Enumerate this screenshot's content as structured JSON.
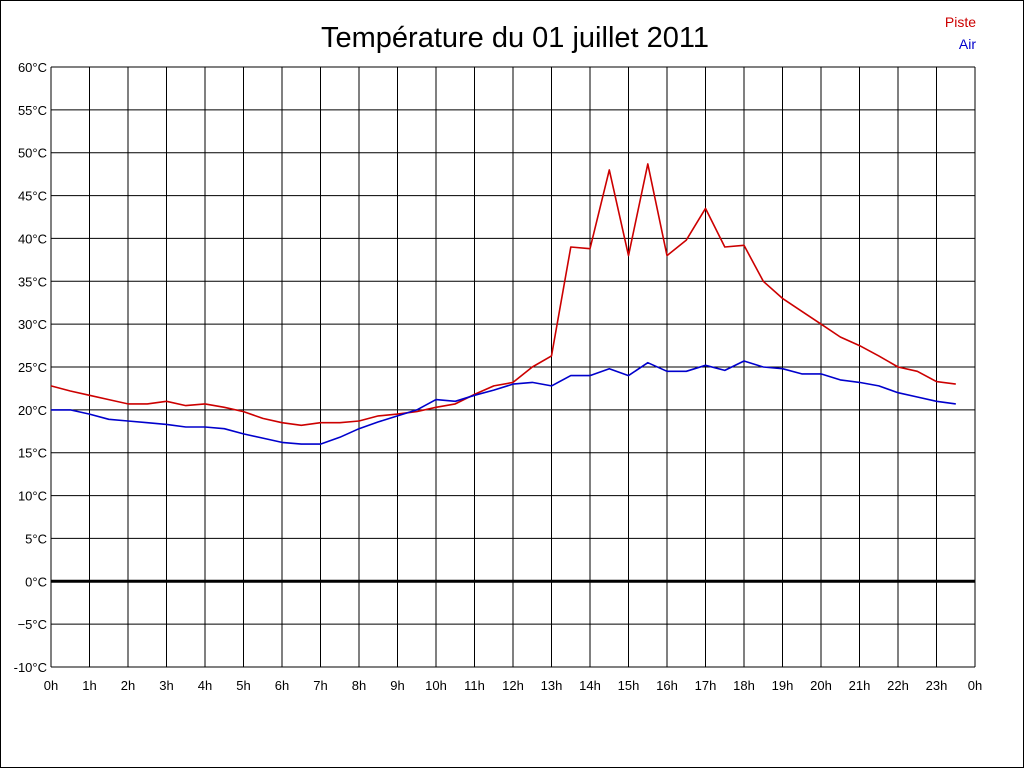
{
  "chart_data": {
    "type": "line",
    "title": "Température du 01 juillet 2011",
    "xlabel": "",
    "ylabel": "",
    "x_ticks": [
      "0h",
      "1h",
      "2h",
      "3h",
      "4h",
      "5h",
      "6h",
      "7h",
      "8h",
      "9h",
      "10h",
      "11h",
      "12h",
      "13h",
      "14h",
      "15h",
      "16h",
      "17h",
      "18h",
      "19h",
      "20h",
      "21h",
      "22h",
      "23h",
      "0h"
    ],
    "xlim": [
      0,
      24
    ],
    "ylim": [
      -10,
      60
    ],
    "y_ticks": [
      {
        "value": -10,
        "label": "-10°C"
      },
      {
        "value": -5,
        "label": "−5°C"
      },
      {
        "value": 0,
        "label": "0°C"
      },
      {
        "value": 5,
        "label": "5°C"
      },
      {
        "value": 10,
        "label": "10°C"
      },
      {
        "value": 15,
        "label": "15°C"
      },
      {
        "value": 20,
        "label": "20°C"
      },
      {
        "value": 25,
        "label": "25°C"
      },
      {
        "value": 30,
        "label": "30°C"
      },
      {
        "value": 35,
        "label": "35°C"
      },
      {
        "value": 40,
        "label": "40°C"
      },
      {
        "value": 45,
        "label": "45°C"
      },
      {
        "value": 50,
        "label": "50°C"
      },
      {
        "value": 55,
        "label": "55°C"
      },
      {
        "value": 60,
        "label": "60°C"
      }
    ],
    "grid": true,
    "legend_position": "top-right",
    "zero_line_color": "#000000",
    "series": [
      {
        "name": "Piste",
        "color": "#cc0000",
        "x": [
          0,
          0.5,
          1,
          1.5,
          2,
          2.5,
          3,
          3.5,
          4,
          4.5,
          5,
          5.5,
          6,
          6.5,
          7,
          7.5,
          8,
          8.5,
          9,
          9.5,
          10,
          10.5,
          11,
          11.5,
          12,
          12.5,
          13,
          13.5,
          14,
          14.5,
          15,
          15.5,
          16,
          16.5,
          17,
          17.5,
          18,
          18.5,
          19,
          19.5,
          20,
          20.5,
          21,
          21.5,
          22,
          22.5,
          23,
          23.5
        ],
        "y": [
          22.8,
          22.2,
          21.7,
          21.2,
          20.7,
          20.7,
          21.0,
          20.5,
          20.7,
          20.3,
          19.8,
          19.0,
          18.5,
          18.2,
          18.5,
          18.5,
          18.7,
          19.3,
          19.5,
          19.8,
          20.3,
          20.7,
          21.8,
          22.8,
          23.2,
          25.0,
          26.3,
          39.0,
          38.8,
          48.0,
          38.0,
          48.7,
          38.0,
          39.8,
          43.5,
          39.0,
          39.2,
          35.0,
          33.0,
          31.5,
          30.0,
          28.5,
          27.5,
          26.3,
          25.0,
          24.5,
          23.3,
          23.0
        ]
      },
      {
        "name": "Air",
        "color": "#0000cc",
        "x": [
          0,
          0.5,
          1,
          1.5,
          2,
          2.5,
          3,
          3.5,
          4,
          4.5,
          5,
          5.5,
          6,
          6.5,
          7,
          7.5,
          8,
          8.5,
          9,
          9.5,
          10,
          10.5,
          11,
          11.5,
          12,
          12.5,
          13,
          13.5,
          14,
          14.5,
          15,
          15.5,
          16,
          16.5,
          17,
          17.5,
          18,
          18.5,
          19,
          19.5,
          20,
          20.5,
          21,
          21.5,
          22,
          22.5,
          23,
          23.5
        ],
        "y": [
          20.0,
          20.0,
          19.5,
          18.9,
          18.7,
          18.5,
          18.3,
          18.0,
          18.0,
          17.8,
          17.2,
          16.7,
          16.2,
          16.0,
          16.0,
          16.8,
          17.8,
          18.6,
          19.3,
          20.0,
          21.2,
          21.0,
          21.7,
          22.3,
          23.0,
          23.2,
          22.8,
          24.0,
          24.0,
          24.8,
          24.0,
          25.5,
          24.5,
          24.5,
          25.2,
          24.6,
          25.7,
          25.0,
          24.8,
          24.2,
          24.2,
          23.5,
          23.2,
          22.8,
          22.0,
          21.5,
          21.0,
          20.7
        ]
      }
    ]
  }
}
